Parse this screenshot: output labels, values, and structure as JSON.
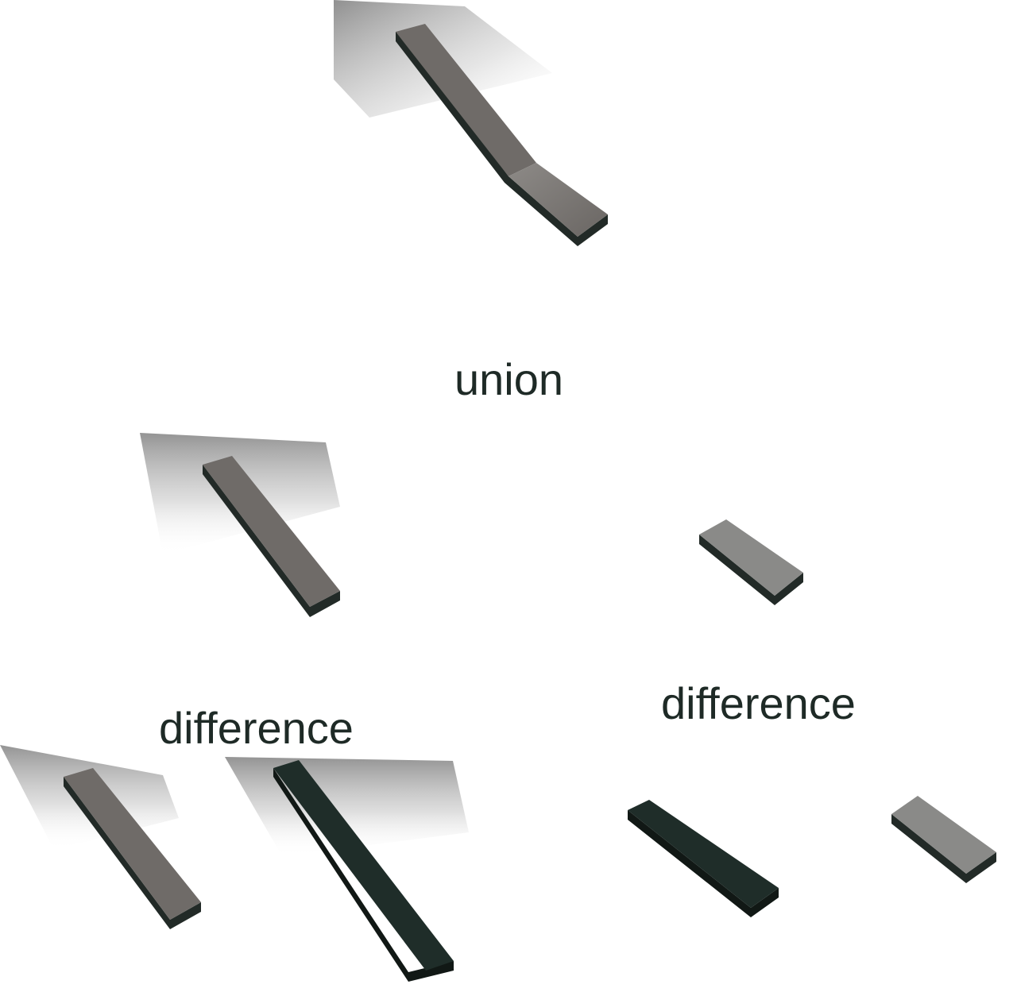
{
  "labels": {
    "union": "union",
    "difference_left": "difference",
    "difference_right": "difference"
  },
  "colors": {
    "background": "#ffffff",
    "bar_top": "#6f6b68",
    "bar_side": "#222a27",
    "bar_edge": "#111815",
    "light_block_top": "#8a8a88",
    "dark_bar_top": "#1f2d29",
    "shadow": "#9c9c9c",
    "label_text": "#1e2a26"
  }
}
